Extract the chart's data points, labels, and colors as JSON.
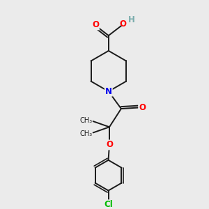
{
  "bg_color": "#ebebeb",
  "bond_color": "#1a1a1a",
  "bond_width": 1.4,
  "atom_colors": {
    "O": "#ff0000",
    "N": "#0000ee",
    "Cl": "#00bb00",
    "H": "#7aacac",
    "C": "#1a1a1a"
  },
  "font_size_atom": 8.5,
  "font_size_small": 7.0,
  "xlim": [
    0,
    10
  ],
  "ylim": [
    0,
    10
  ]
}
